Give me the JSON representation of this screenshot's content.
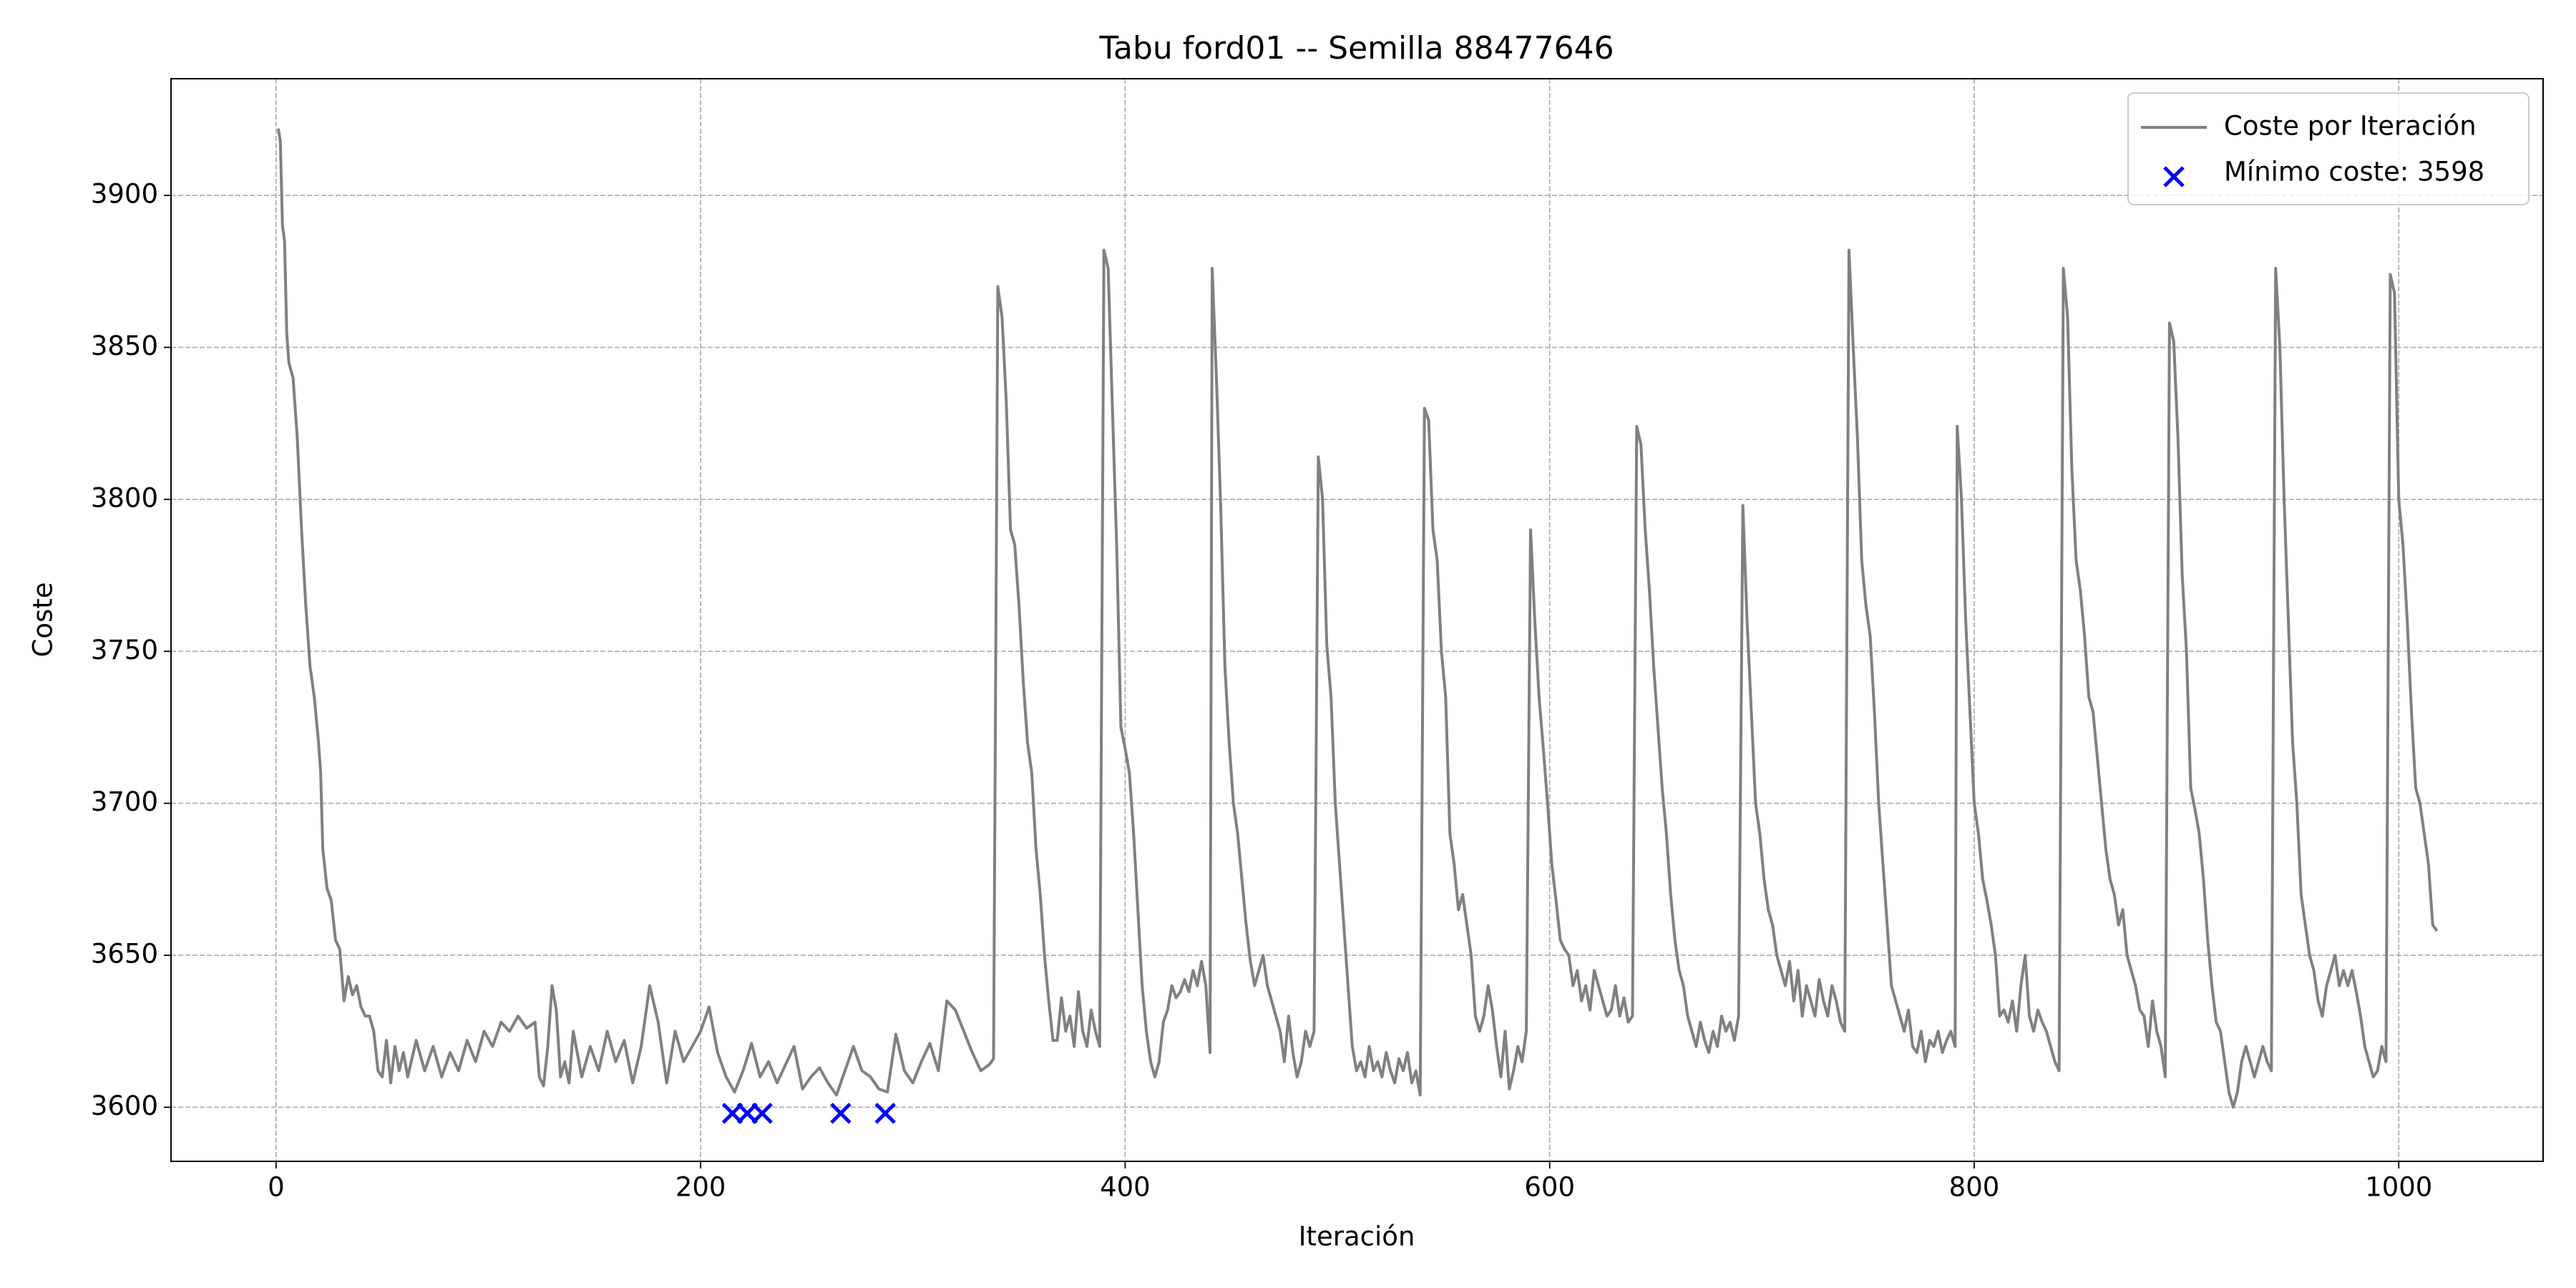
{
  "chart_data": {
    "type": "line",
    "title": "Tabu ford01 -- Semilla 88477646",
    "xlabel": "Iteración",
    "ylabel": "Coste",
    "xlim": [
      -49.5,
      1068
    ],
    "ylim": [
      3582.2,
      3938.4
    ],
    "xticks": [
      0,
      200,
      400,
      600,
      800,
      1000
    ],
    "yticks": [
      3600,
      3650,
      3700,
      3750,
      3800,
      3850,
      3900
    ],
    "grid": true,
    "legend": "upper right",
    "series": [
      {
        "name": "Coste por Iteración",
        "type": "line",
        "color": "#808080",
        "x": [
          1,
          2,
          3,
          4,
          5,
          6,
          8,
          10,
          12,
          14,
          16,
          18,
          20,
          21,
          22,
          24,
          26,
          28,
          30,
          32,
          34,
          36,
          38,
          40,
          42,
          44,
          46,
          48,
          50,
          52,
          54,
          56,
          58,
          60,
          62,
          66,
          70,
          74,
          78,
          82,
          86,
          90,
          94,
          98,
          102,
          106,
          110,
          114,
          118,
          122,
          124,
          126,
          128,
          130,
          132,
          134,
          136,
          138,
          140,
          144,
          148,
          152,
          156,
          160,
          164,
          168,
          172,
          176,
          180,
          184,
          188,
          192,
          196,
          200,
          204,
          208,
          212,
          216,
          220,
          224,
          228,
          232,
          236,
          240,
          244,
          248,
          252,
          256,
          260,
          264,
          268,
          272,
          276,
          280,
          284,
          288,
          292,
          296,
          300,
          304,
          308,
          312,
          316,
          320,
          324,
          328,
          332,
          336,
          338,
          340,
          342,
          344,
          346,
          348,
          350,
          352,
          354,
          356,
          358,
          360,
          362,
          364,
          366,
          368,
          370,
          372,
          374,
          376,
          378,
          380,
          382,
          384,
          386,
          388,
          390,
          392,
          394,
          396,
          398,
          400,
          402,
          404,
          406,
          408,
          410,
          412,
          414,
          416,
          418,
          420,
          422,
          424,
          426,
          428,
          430,
          432,
          434,
          436,
          438,
          440,
          441,
          443,
          445,
          447,
          449,
          451,
          453,
          455,
          457,
          459,
          461,
          463,
          465,
          467,
          469,
          471,
          473,
          475,
          477,
          479,
          481,
          483,
          485,
          487,
          489,
          491,
          493,
          495,
          497,
          499,
          501,
          503,
          505,
          507,
          509,
          511,
          513,
          515,
          517,
          519,
          521,
          523,
          525,
          527,
          529,
          531,
          533,
          535,
          537,
          539,
          541,
          543,
          545,
          547,
          549,
          551,
          553,
          555,
          557,
          559,
          561,
          563,
          565,
          567,
          569,
          571,
          573,
          575,
          577,
          579,
          581,
          583,
          585,
          587,
          589,
          591,
          593,
          595,
          597,
          599,
          601,
          603,
          605,
          607,
          609,
          611,
          613,
          615,
          617,
          619,
          621,
          623,
          625,
          627,
          629,
          631,
          633,
          635,
          637,
          639,
          641,
          643,
          645,
          647,
          649,
          651,
          653,
          655,
          657,
          659,
          661,
          663,
          665,
          667,
          669,
          671,
          673,
          675,
          677,
          679,
          681,
          683,
          685,
          687,
          689,
          691,
          693,
          695,
          697,
          699,
          701,
          703,
          705,
          707,
          709,
          711,
          713,
          715,
          717,
          719,
          721,
          723,
          725,
          727,
          729,
          731,
          733,
          735,
          737,
          739,
          741,
          743,
          745,
          747,
          749,
          751,
          753,
          755,
          757,
          759,
          761,
          763,
          765,
          767,
          769,
          771,
          773,
          775,
          777,
          779,
          781,
          783,
          785,
          787,
          789,
          791,
          792,
          794,
          796,
          798,
          800,
          802,
          804,
          806,
          808,
          810,
          812,
          814,
          816,
          818,
          820,
          822,
          824,
          826,
          828,
          830,
          832,
          834,
          836,
          838,
          840,
          842,
          844,
          846,
          848,
          850,
          852,
          854,
          856,
          858,
          860,
          862,
          864,
          866,
          868,
          870,
          872,
          874,
          876,
          878,
          880,
          882,
          884,
          886,
          888,
          890,
          892,
          894,
          896,
          898,
          900,
          902,
          904,
          906,
          908,
          910,
          912,
          914,
          916,
          918,
          920,
          922,
          924,
          926,
          928,
          930,
          932,
          934,
          936,
          938,
          940,
          942,
          944,
          946,
          948,
          950,
          952,
          954,
          956,
          958,
          960,
          962,
          964,
          966,
          968,
          970,
          972,
          974,
          976,
          978,
          980,
          982,
          984,
          986,
          988,
          990,
          992,
          994,
          996,
          998,
          1000,
          1002,
          1004,
          1006,
          1008,
          1010,
          1012,
          1014,
          1016,
          1018
        ],
        "values": [
          3922,
          3918,
          3890,
          3885,
          3855,
          3845,
          3840,
          3820,
          3790,
          3765,
          3745,
          3735,
          3720,
          3710,
          3685,
          3672,
          3668,
          3655,
          3652,
          3635,
          3643,
          3637,
          3640,
          3633,
          3630,
          3630,
          3625,
          3612,
          3610,
          3622,
          3608,
          3620,
          3612,
          3618,
          3610,
          3622,
          3612,
          3620,
          3610,
          3618,
          3612,
          3622,
          3615,
          3625,
          3620,
          3628,
          3625,
          3630,
          3626,
          3628,
          3610,
          3607,
          3620,
          3640,
          3632,
          3610,
          3615,
          3608,
          3625,
          3610,
          3620,
          3612,
          3625,
          3615,
          3622,
          3608,
          3620,
          3640,
          3628,
          3608,
          3625,
          3615,
          3620,
          3625,
          3633,
          3618,
          3610,
          3605,
          3612,
          3621,
          3610,
          3615,
          3608,
          3614,
          3620,
          3606,
          3610,
          3613,
          3608,
          3604,
          3612,
          3620,
          3612,
          3610,
          3606,
          3605,
          3624,
          3612,
          3608,
          3615,
          3621,
          3612,
          3635,
          3632,
          3625,
          3618,
          3612,
          3614,
          3616,
          3870,
          3860,
          3832,
          3790,
          3785,
          3765,
          3740,
          3720,
          3710,
          3685,
          3670,
          3650,
          3635,
          3622,
          3622,
          3636,
          3625,
          3630,
          3620,
          3638,
          3625,
          3620,
          3632,
          3625,
          3620,
          3882,
          3876,
          3830,
          3785,
          3725,
          3718,
          3710,
          3690,
          3665,
          3640,
          3625,
          3615,
          3610,
          3615,
          3628,
          3632,
          3640,
          3636,
          3638,
          3642,
          3638,
          3645,
          3640,
          3648,
          3640,
          3618,
          3876,
          3840,
          3798,
          3745,
          3720,
          3700,
          3690,
          3675,
          3660,
          3648,
          3640,
          3645,
          3650,
          3640,
          3635,
          3630,
          3625,
          3615,
          3630,
          3618,
          3610,
          3615,
          3625,
          3620,
          3625,
          3814,
          3800,
          3752,
          3735,
          3700,
          3680,
          3660,
          3640,
          3620,
          3612,
          3615,
          3610,
          3620,
          3612,
          3615,
          3610,
          3618,
          3612,
          3608,
          3616,
          3612,
          3618,
          3608,
          3612,
          3604,
          3830,
          3826,
          3790,
          3780,
          3750,
          3735,
          3690,
          3680,
          3665,
          3670,
          3660,
          3650,
          3630,
          3625,
          3630,
          3640,
          3632,
          3620,
          3610,
          3625,
          3606,
          3612,
          3620,
          3615,
          3625,
          3790,
          3760,
          3735,
          3718,
          3700,
          3680,
          3668,
          3655,
          3652,
          3650,
          3640,
          3645,
          3635,
          3640,
          3632,
          3645,
          3640,
          3635,
          3630,
          3632,
          3640,
          3630,
          3636,
          3628,
          3630,
          3824,
          3818,
          3790,
          3770,
          3745,
          3725,
          3705,
          3690,
          3670,
          3655,
          3645,
          3640,
          3630,
          3625,
          3620,
          3628,
          3622,
          3618,
          3625,
          3620,
          3630,
          3625,
          3628,
          3622,
          3630,
          3798,
          3760,
          3730,
          3700,
          3690,
          3675,
          3665,
          3660,
          3650,
          3645,
          3640,
          3648,
          3635,
          3645,
          3630,
          3640,
          3635,
          3630,
          3642,
          3635,
          3630,
          3640,
          3635,
          3628,
          3625,
          3882,
          3850,
          3820,
          3780,
          3765,
          3755,
          3730,
          3700,
          3680,
          3660,
          3640,
          3635,
          3630,
          3625,
          3632,
          3620,
          3618,
          3625,
          3615,
          3622,
          3620,
          3625,
          3618,
          3622,
          3625,
          3620,
          3824,
          3800,
          3760,
          3730,
          3700,
          3690,
          3675,
          3668,
          3660,
          3650,
          3630,
          3632,
          3628,
          3635,
          3625,
          3640,
          3650,
          3630,
          3625,
          3632,
          3628,
          3625,
          3620,
          3615,
          3612,
          3876,
          3860,
          3810,
          3780,
          3770,
          3755,
          3735,
          3730,
          3715,
          3700,
          3685,
          3675,
          3670,
          3660,
          3665,
          3650,
          3645,
          3640,
          3632,
          3630,
          3620,
          3635,
          3625,
          3620,
          3610,
          3858,
          3852,
          3820,
          3775,
          3750,
          3705,
          3698,
          3690,
          3675,
          3655,
          3640,
          3628,
          3625,
          3615,
          3605,
          3600,
          3605,
          3615,
          3620,
          3615,
          3610,
          3615,
          3620,
          3615,
          3612,
          3876,
          3850,
          3800,
          3760,
          3720,
          3700,
          3670,
          3660,
          3650,
          3645,
          3635,
          3630,
          3640,
          3645,
          3650,
          3640,
          3645,
          3640,
          3645,
          3638,
          3630,
          3620,
          3615,
          3610,
          3612,
          3620,
          3615,
          3874,
          3868,
          3800,
          3785,
          3760,
          3730,
          3705,
          3700,
          3690,
          3680,
          3660,
          3658
        ]
      },
      {
        "name": "Mínimo coste: 3598",
        "type": "scatter",
        "color": "#0000ff",
        "x": [
          215,
          222,
          229,
          266,
          287
        ],
        "values": [
          3598,
          3598,
          3598,
          3598,
          3598
        ]
      }
    ]
  }
}
